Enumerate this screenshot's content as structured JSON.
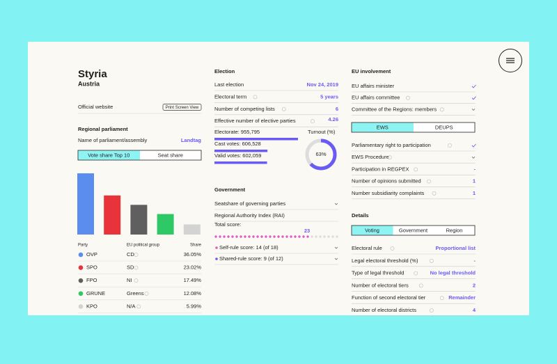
{
  "header": {
    "title": "Styria",
    "subtitle": "Austria",
    "website_label": "Official website",
    "website_button": "Print Screen View"
  },
  "parliament": {
    "heading": "Regional parliament",
    "name_label": "Name of parliament/assembly",
    "name": "Landtag",
    "tabs": [
      "Vote share Top 10",
      "Seat share"
    ],
    "columns": [
      "Party",
      "EU political group",
      "Share"
    ],
    "groups": [
      "CD",
      "SD",
      "NI",
      "Greens",
      "N/A"
    ]
  },
  "chart_data": {
    "type": "bar",
    "categories": [
      "OVP",
      "SPO",
      "FPO",
      "GRUNE",
      "KPO"
    ],
    "values": [
      36.05,
      23.02,
      17.49,
      12.08,
      5.99
    ],
    "value_labels": [
      "36.05%",
      "23.02%",
      "17.49%",
      "12.08%",
      "5.99%"
    ],
    "colors": [
      "#5b8def",
      "#e8333a",
      "#5f5f5f",
      "#2ec866",
      "#d3d3d3"
    ]
  },
  "election": {
    "heading": "Election",
    "rows": [
      {
        "label": "Last election",
        "value": "Nov 24, 2019"
      },
      {
        "label": "Electoral term",
        "value": "5 years",
        "info": true
      },
      {
        "label": "Number of competing lists",
        "value": 6,
        "info": true
      },
      {
        "label": "Effective number of elective parties",
        "value": 4.26,
        "info": true
      }
    ],
    "votes": [
      {
        "label": "Electorate: 955,795",
        "value": 955795
      },
      {
        "label": "Cast votes: 606,528",
        "value": 606528
      },
      {
        "label": "Valid votes: 602,059",
        "value": 602059
      }
    ],
    "turnout_label": "Turnout (%)",
    "turnout": 63,
    "turnout_text": "63%"
  },
  "government": {
    "heading": "Government",
    "rows": [
      {
        "label": "Seatshare of governing parties",
        "icon": "chevron"
      },
      {
        "label": "Regional Authority Index (RAI)"
      }
    ],
    "total_label": "Total score:",
    "score": 23,
    "subscores": [
      {
        "label": "Self-rule score: 14 (of 18)",
        "color": "#e05bc8"
      },
      {
        "label": "Shared-rule score: 9 (of 12)",
        "color": "#6b5bf5"
      }
    ]
  },
  "eu": {
    "heading": "EU involvement",
    "rows": [
      {
        "label": "EU affairs minister",
        "icon": "check"
      },
      {
        "label": "EU affairs committee",
        "icon": "check",
        "info": true
      },
      {
        "label": "Committee of the Regions: members",
        "icon": "chevron",
        "info": true
      }
    ],
    "tabs": [
      "EWS",
      "DEUPS"
    ],
    "rows2": [
      {
        "label": "Parliamentary right to participation",
        "icon": "check",
        "info": true
      },
      {
        "label": "EWS Procedure",
        "icon": "chevron",
        "info": true
      },
      {
        "label": "Participation in REGPEX",
        "value": "-",
        "info": true
      },
      {
        "label": "Number of opinions submitted",
        "value": 1,
        "info": true
      },
      {
        "label": "Number subsidiarity complaints",
        "value": 1,
        "info": true
      }
    ]
  },
  "details": {
    "heading": "Details",
    "tabs": [
      "Voting",
      "Government",
      "Region"
    ],
    "rows": [
      {
        "label": "Electoral rule",
        "value": "Proportional list",
        "info": true
      },
      {
        "label": "Legal electoral threshold (%)",
        "value": "-",
        "info": true
      },
      {
        "label": "Type of legal threshold",
        "value": "No legal threshold",
        "info": true
      },
      {
        "label": "Number of electoral tiers",
        "value": 2,
        "info": true
      },
      {
        "label": "Function of second electoral tier",
        "value": "Remainder",
        "info": true
      },
      {
        "label": "Number of electoral districts",
        "value": 4,
        "info": true
      }
    ]
  }
}
